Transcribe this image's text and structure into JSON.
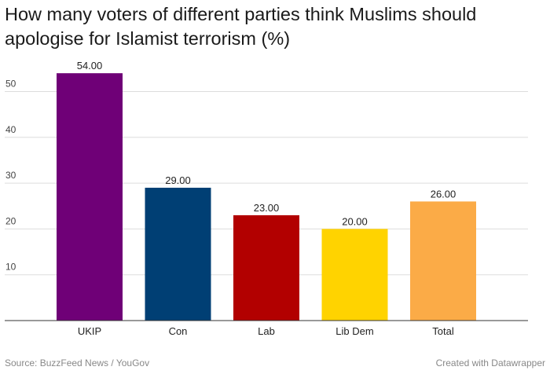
{
  "title": "How many voters of different parties think Muslims should apologise for Islamist terrorism (%)",
  "footer": {
    "source": "Source: BuzzFeed News / YouGov",
    "credit": "Created with Datawrapper"
  },
  "colors": {
    "UKIP": "#6f0077",
    "Con": "#003f74",
    "Lab": "#b20000",
    "Lib Dem": "#ffd300",
    "Total": "#fbab47"
  },
  "chart_data": {
    "type": "bar",
    "categories": [
      "UKIP",
      "Con",
      "Lab",
      "Lib Dem",
      "Total"
    ],
    "values": [
      54,
      29,
      23,
      20,
      26
    ],
    "value_labels": [
      "54.00",
      "29.00",
      "23.00",
      "20.00",
      "26.00"
    ],
    "y_ticks": [
      10,
      20,
      30,
      40,
      50
    ],
    "ylim": [
      0,
      55
    ],
    "grid": true,
    "xlabel": "",
    "ylabel": ""
  }
}
